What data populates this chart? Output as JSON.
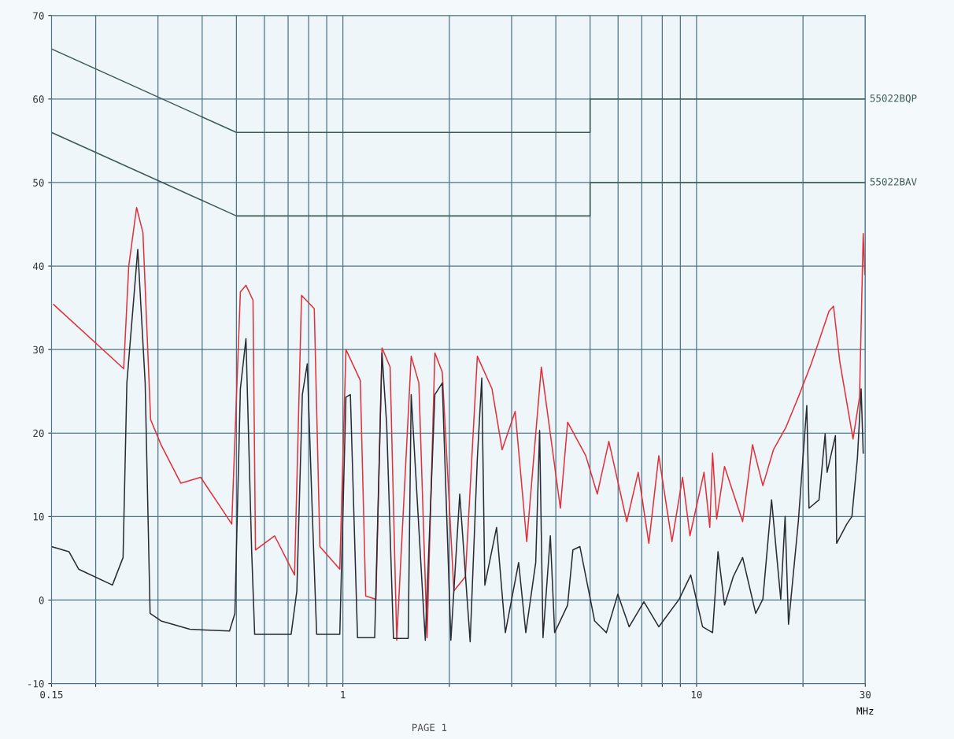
{
  "chart_data": {
    "type": "line",
    "xlabel": "MHz",
    "log": "x",
    "grid": true,
    "legend": false,
    "marker": "none",
    "line_style": "solid",
    "xlim": [
      0.15,
      30
    ],
    "ylim": [
      -10,
      70
    ],
    "xticks": [
      0.15,
      {
        "value": 0.2,
        "label": null
      },
      {
        "value": 0.3,
        "label": null
      },
      {
        "value": 0.4,
        "label": null
      },
      {
        "value": 0.5,
        "label": null
      },
      {
        "value": 0.6,
        "label": null
      },
      {
        "value": 0.7,
        "label": null
      },
      {
        "value": 0.8,
        "label": null
      },
      {
        "value": 0.9,
        "label": null
      },
      1,
      {
        "value": 2,
        "label": null
      },
      {
        "value": 3,
        "label": null
      },
      {
        "value": 4,
        "label": null
      },
      {
        "value": 5,
        "label": null
      },
      {
        "value": 6,
        "label": null
      },
      {
        "value": 7,
        "label": null
      },
      {
        "value": 8,
        "label": null
      },
      {
        "value": 9,
        "label": null
      },
      10,
      {
        "value": 20,
        "label": null
      },
      30
    ],
    "yticks": [
      -10,
      0,
      10,
      20,
      30,
      40,
      50,
      60,
      70
    ],
    "annotations": [
      "PAGE 1"
    ],
    "series": [
      {
        "name": "55022BQP",
        "color": "#3d5c52",
        "x": [
          0.15,
          0.5,
          5,
          5,
          30
        ],
        "values": [
          66,
          56,
          56,
          60,
          60
        ]
      },
      {
        "name": "55022BAV",
        "color": "#3d5c52",
        "x": [
          0.15,
          0.5,
          5,
          5,
          30
        ],
        "values": [
          56,
          46,
          46,
          50,
          50
        ]
      },
      {
        "color": "#e0303a",
        "x": [
          0.152,
          0.24,
          0.248,
          0.261,
          0.272,
          0.286,
          0.306,
          0.348,
          0.396,
          0.458,
          0.485,
          0.513,
          0.532,
          0.557,
          0.566,
          0.641,
          0.73,
          0.764,
          0.83,
          0.861,
          0.98,
          1.02,
          1.12,
          1.16,
          1.24,
          1.29,
          1.36,
          1.42,
          1.56,
          1.64,
          1.73,
          1.82,
          1.91,
          2.06,
          2.22,
          2.4,
          2.64,
          2.82,
          3.07,
          3.31,
          3.64,
          4.12,
          4.32,
          4.86,
          5.24,
          5.65,
          6.35,
          6.84,
          7.33,
          7.82,
          8.52,
          9.13,
          9.58,
          10.5,
          10.9,
          11.1,
          11.4,
          12.0,
          13.5,
          14.4,
          15.4,
          16.5,
          17.9,
          19.4,
          21.1,
          23.7,
          24.4,
          25.4,
          27.7,
          28.9,
          29.6,
          29.9
        ],
        "values": [
          35.4,
          27.7,
          40,
          47,
          44,
          21.6,
          18.6,
          14,
          14.7,
          10.7,
          9.1,
          36.9,
          37.7,
          35.9,
          6,
          7.7,
          3,
          36.5,
          34.9,
          6.4,
          3.7,
          30,
          26.3,
          0.5,
          0.1,
          30.2,
          27.9,
          -4.8,
          29.2,
          26,
          -4.5,
          29.6,
          27.3,
          1.1,
          2.8,
          29.2,
          25.3,
          18,
          22.6,
          7,
          27.9,
          11,
          21.3,
          17.3,
          12.7,
          19,
          9.4,
          15.3,
          6.8,
          17.3,
          7,
          14.7,
          7.7,
          15.3,
          8.7,
          17.6,
          9.7,
          16,
          9.4,
          18.6,
          13.7,
          18,
          20.7,
          24.3,
          28.3,
          34.6,
          35.2,
          28.6,
          19.3,
          24.3,
          43.9,
          39
        ]
      },
      {
        "color": "#2a2a32",
        "x": [
          0.15,
          0.168,
          0.179,
          0.223,
          0.239,
          0.245,
          0.263,
          0.276,
          0.285,
          0.306,
          0.369,
          0.478,
          0.495,
          0.513,
          0.532,
          0.552,
          0.563,
          0.714,
          0.741,
          0.768,
          0.793,
          0.821,
          0.843,
          0.98,
          1.02,
          1.05,
          1.1,
          1.23,
          1.29,
          1.33,
          1.39,
          1.53,
          1.56,
          1.71,
          1.82,
          1.91,
          2.02,
          2.14,
          2.29,
          2.4,
          2.47,
          2.52,
          2.72,
          2.88,
          3.14,
          3.29,
          3.51,
          3.6,
          3.68,
          3.86,
          3.97,
          4.32,
          4.47,
          4.68,
          5.15,
          5.56,
          5.99,
          6.45,
          7.1,
          7.82,
          8.93,
          9.63,
          10.4,
          11.1,
          11.5,
          12.0,
          12.7,
          13.5,
          14.7,
          15.4,
          16.3,
          17.3,
          17.8,
          18.2,
          19.4,
          20.5,
          20.8,
          22.2,
          23.1,
          23.4,
          24.7,
          24.9,
          26.6,
          27.5,
          28.5,
          29.2,
          29.6
        ],
        "values": [
          6.4,
          5.8,
          3.7,
          1.8,
          5.1,
          26,
          42,
          26,
          -1.6,
          -2.5,
          -3.5,
          -3.7,
          -1.6,
          25.3,
          31.3,
          6,
          -4.1,
          -4.1,
          1.1,
          24.6,
          28.3,
          9.4,
          -4.1,
          -4.1,
          24.3,
          24.6,
          -4.5,
          -4.5,
          29.6,
          21,
          -4.6,
          -4.6,
          24.6,
          -4.8,
          24.6,
          26,
          -4.8,
          12.7,
          -5,
          17,
          26.6,
          1.8,
          8.7,
          -3.9,
          4.5,
          -3.9,
          4.5,
          20.3,
          -4.5,
          7.7,
          -3.9,
          -0.6,
          6,
          6.4,
          -2.5,
          -3.9,
          0.7,
          -3.2,
          -0.2,
          -3.2,
          0.1,
          3,
          -3.2,
          -3.9,
          5.8,
          -0.6,
          2.8,
          5.1,
          -1.6,
          0.1,
          12,
          0.1,
          10,
          -2.9,
          9.4,
          23.3,
          11,
          12,
          19.9,
          15.3,
          19.7,
          6.8,
          9.1,
          10,
          17,
          25.3,
          17.6
        ]
      }
    ]
  }
}
